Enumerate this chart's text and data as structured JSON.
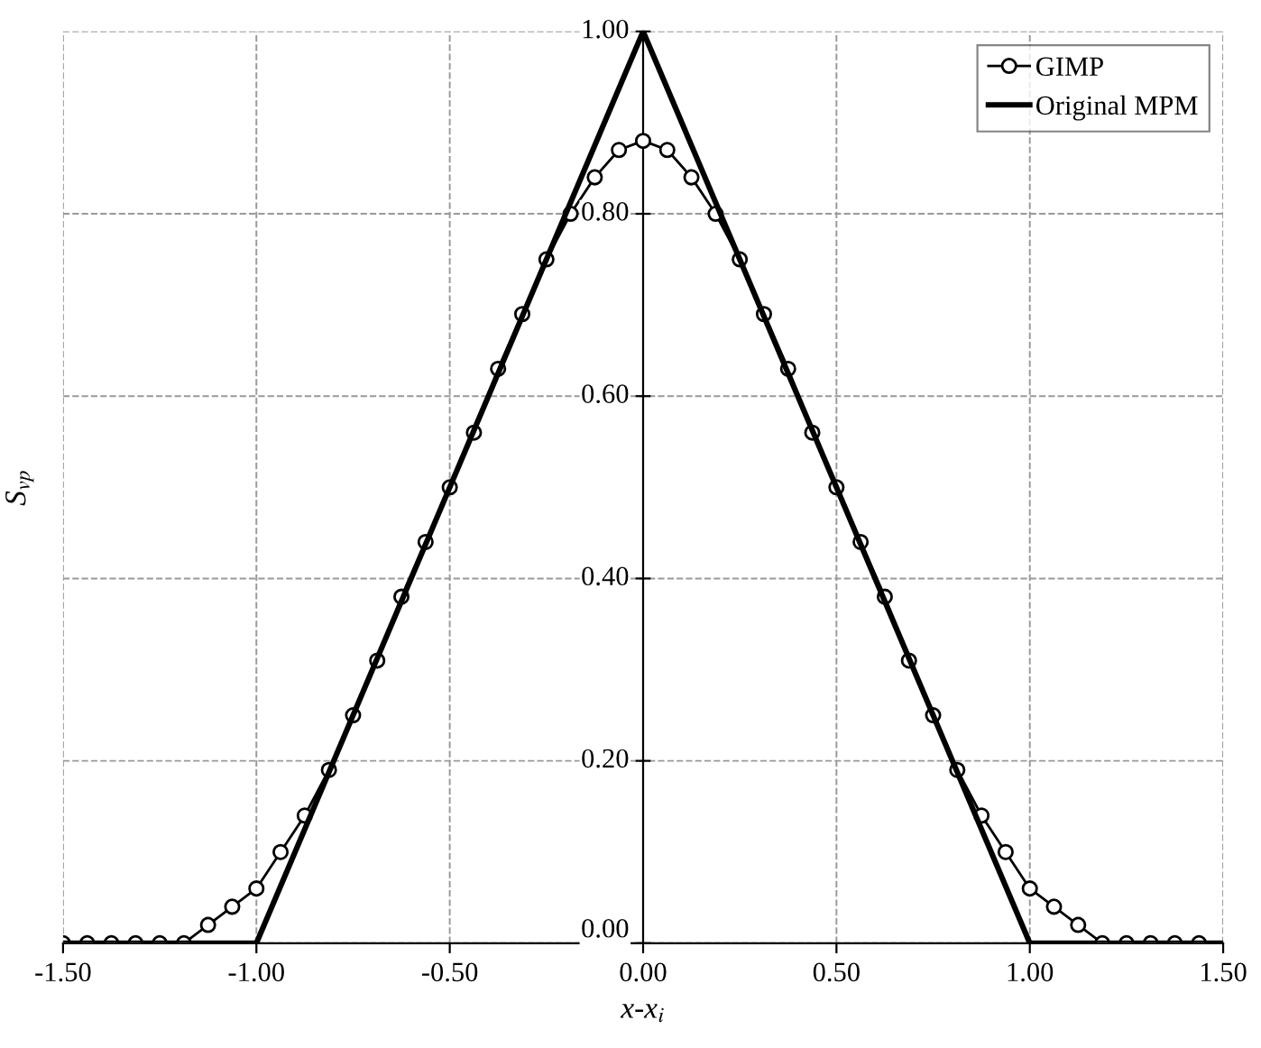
{
  "chart_data": {
    "type": "line",
    "xlabel": "x-x$_{i}$",
    "ylabel": "S$_{vp}$",
    "xlim": [
      -1.5,
      1.5
    ],
    "ylim": [
      0,
      1
    ],
    "xticks": [
      {
        "value": -1.5,
        "label": "-1.50"
      },
      {
        "value": -1.0,
        "label": "-1.00"
      },
      {
        "value": -0.5,
        "label": "-0.50"
      },
      {
        "value": 0,
        "label": "0.00"
      },
      {
        "value": 0.5,
        "label": "0.50"
      },
      {
        "value": 1.0,
        "label": "1.00"
      },
      {
        "value": 1.5,
        "label": "1.50"
      }
    ],
    "yticks": [
      {
        "value": 0,
        "label": "0.00"
      },
      {
        "value": 0.2,
        "label": "0.20"
      },
      {
        "value": 0.4,
        "label": "0.40"
      },
      {
        "value": 0.6,
        "label": "0.60"
      },
      {
        "value": 0.8,
        "label": "0.80"
      },
      {
        "value": 1.0,
        "label": "1.00"
      }
    ],
    "grid": true,
    "legend": "top right",
    "series": [
      {
        "name": "GIMP",
        "color": "#000000",
        "marker": "circle",
        "line_style": "solid",
        "x": [
          -1.5,
          -1.4375,
          -1.375,
          -1.3125,
          -1.25,
          -1.1875,
          -1.125,
          -1.0625,
          -1.0,
          -0.9375,
          -0.875,
          -0.8125,
          -0.75,
          -0.6875,
          -0.625,
          -0.5625,
          -0.5,
          -0.4375,
          -0.375,
          -0.3125,
          -0.25,
          -0.1875,
          -0.125,
          -0.0625,
          0,
          0.0625,
          0.125,
          0.1875,
          0.25,
          0.3125,
          0.375,
          0.4375,
          0.5,
          0.5625,
          0.625,
          0.6875,
          0.75,
          0.8125,
          0.875,
          0.9375,
          1.0,
          1.0625,
          1.125,
          1.1875,
          1.25,
          1.3125,
          1.375,
          1.4375
        ],
        "values": [
          0,
          0,
          0,
          0,
          0,
          0,
          0.02,
          0.04,
          0.06,
          0.1,
          0.14,
          0.19,
          0.25,
          0.31,
          0.38,
          0.44,
          0.5,
          0.56,
          0.63,
          0.69,
          0.75,
          0.8,
          0.84,
          0.87,
          0.88,
          0.87,
          0.84,
          0.8,
          0.75,
          0.69,
          0.63,
          0.56,
          0.5,
          0.44,
          0.38,
          0.31,
          0.25,
          0.19,
          0.14,
          0.1,
          0.06,
          0.04,
          0.02,
          0,
          0,
          0,
          0,
          0
        ]
      },
      {
        "name": "Original MPM",
        "color": "#000000",
        "marker": "none",
        "line_style": "solid",
        "x": [
          -1.5,
          -1.0,
          0,
          1.0,
          1.5
        ],
        "values": [
          0,
          0,
          1,
          0,
          0
        ]
      }
    ]
  }
}
